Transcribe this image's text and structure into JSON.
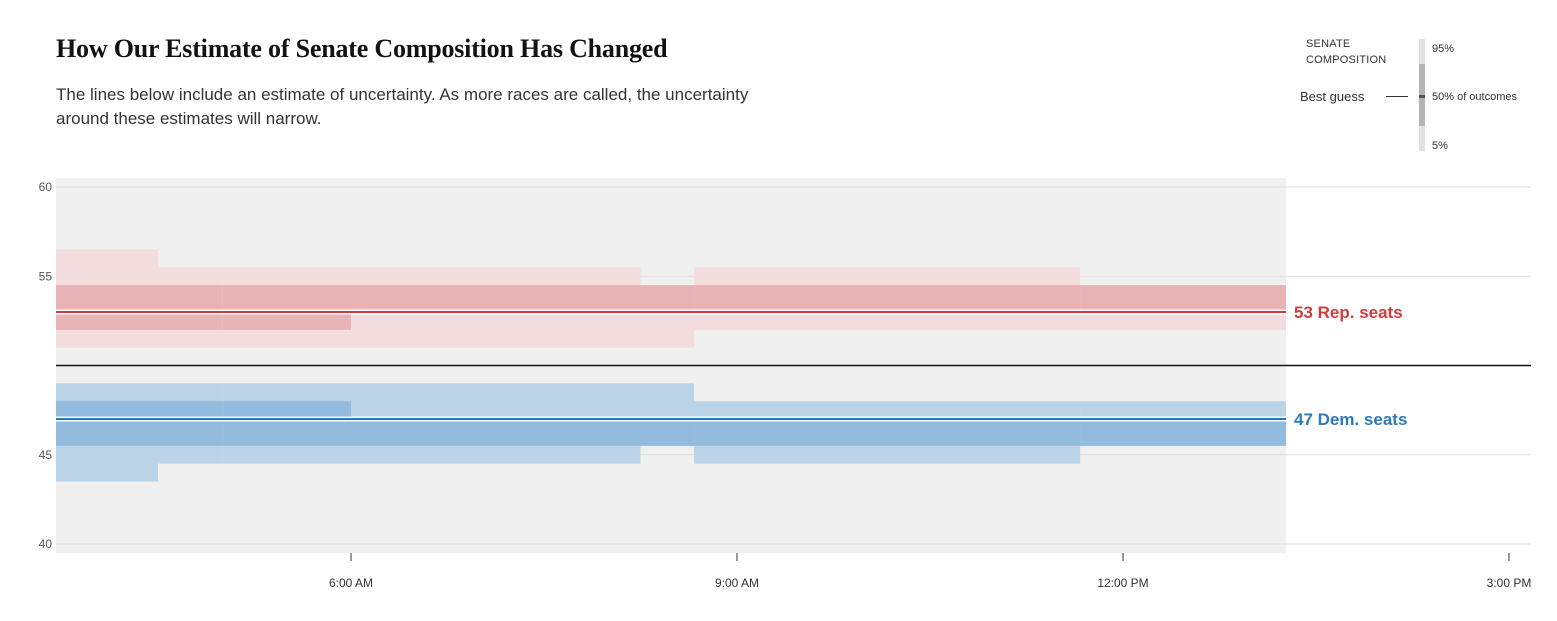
{
  "header": {
    "title": "How Our Estimate of Senate Composition Has Changed",
    "subtitle": "The lines below include an estimate of uncertainty. As more races are called, the uncertainty around these estimates will narrow."
  },
  "legend": {
    "heading_line1": "SENATE",
    "heading_line2": "COMPOSITION",
    "best_guess": "Best guess",
    "p95": "95%",
    "p50": "50% of outcomes",
    "p5": "5%"
  },
  "colors": {
    "rep": "#cc3d3d",
    "dem": "#2b7bb9",
    "rep_band_inner": "#e7b3b5",
    "rep_band_outer": "#f2dcdd",
    "dem_band_inner": "#93bbdd",
    "dem_band_outer": "#bad3e7",
    "plot_bg": "#f0f0f0",
    "majority_line": "#121212"
  },
  "chart_data": {
    "type": "area",
    "title": "How Our Estimate of Senate Composition Has Changed",
    "xlabel": "",
    "ylabel": "",
    "x_ticks": [
      "6:00 AM",
      "9:00 AM",
      "12:00 PM",
      "3:00 PM"
    ],
    "y_ticks": [
      40,
      45,
      55,
      60
    ],
    "ylim": [
      40,
      60
    ],
    "x_range": [
      "3:42 AM",
      "3:05 PM"
    ],
    "data_end": "1:20 PM",
    "majority_line": 50,
    "grid": true,
    "series": [
      {
        "name": "Rep.",
        "best_guess": 53,
        "end_label": "53 Rep. seats",
        "points": [
          {
            "t": "3:42 AM",
            "best": 53,
            "p5": 51,
            "p25": 52,
            "p75": 54.5,
            "p95": 56.5
          },
          {
            "t": "4:30 AM",
            "best": 53,
            "p5": 51,
            "p25": 52,
            "p75": 54.5,
            "p95": 55.5
          },
          {
            "t": "5:00 AM",
            "best": 53,
            "p5": 51,
            "p25": 52,
            "p75": 54.5,
            "p95": 55.5
          },
          {
            "t": "6:00 AM",
            "best": 53,
            "p5": 51,
            "p25": 53,
            "p75": 54.5,
            "p95": 55.5
          },
          {
            "t": "7:30 AM",
            "best": 53,
            "p5": 51,
            "p25": 53,
            "p75": 54.5,
            "p95": 55.5
          },
          {
            "t": "8:15 AM",
            "best": 53,
            "p5": 51,
            "p25": 53,
            "p75": 54.5,
            "p95": 54.5
          },
          {
            "t": "8:40 AM",
            "best": 53,
            "p5": 52,
            "p25": 53,
            "p75": 54.5,
            "p95": 55.5
          },
          {
            "t": "11:40 AM",
            "best": 53,
            "p5": 52,
            "p25": 53,
            "p75": 54.5,
            "p95": 54.5
          },
          {
            "t": "1:20 PM",
            "best": 53,
            "p5": 52,
            "p25": 53,
            "p75": 54.5,
            "p95": 54.5
          }
        ]
      },
      {
        "name": "Dem.",
        "best_guess": 47,
        "end_label": "47 Dem. seats",
        "points": [
          {
            "t": "3:42 AM",
            "best": 47,
            "p5": 43.5,
            "p25": 45.5,
            "p75": 48,
            "p95": 49
          },
          {
            "t": "4:30 AM",
            "best": 47,
            "p5": 44.5,
            "p25": 45.5,
            "p75": 48,
            "p95": 49
          },
          {
            "t": "5:00 AM",
            "best": 47,
            "p5": 44.5,
            "p25": 45.5,
            "p75": 48,
            "p95": 49
          },
          {
            "t": "6:00 AM",
            "best": 47,
            "p5": 44.5,
            "p25": 45.5,
            "p75": 47,
            "p95": 49
          },
          {
            "t": "7:30 AM",
            "best": 47,
            "p5": 44.5,
            "p25": 45.5,
            "p75": 47,
            "p95": 49
          },
          {
            "t": "8:15 AM",
            "best": 47,
            "p5": 45.5,
            "p25": 45.5,
            "p75": 47,
            "p95": 49
          },
          {
            "t": "8:40 AM",
            "best": 47,
            "p5": 44.5,
            "p25": 45.5,
            "p75": 47,
            "p95": 48
          },
          {
            "t": "11:40 AM",
            "best": 47,
            "p5": 45.5,
            "p25": 45.5,
            "p75": 47,
            "p95": 48
          },
          {
            "t": "1:20 PM",
            "best": 47,
            "p5": 45.5,
            "p25": 45.5,
            "p75": 47,
            "p95": 48
          }
        ]
      }
    ]
  }
}
